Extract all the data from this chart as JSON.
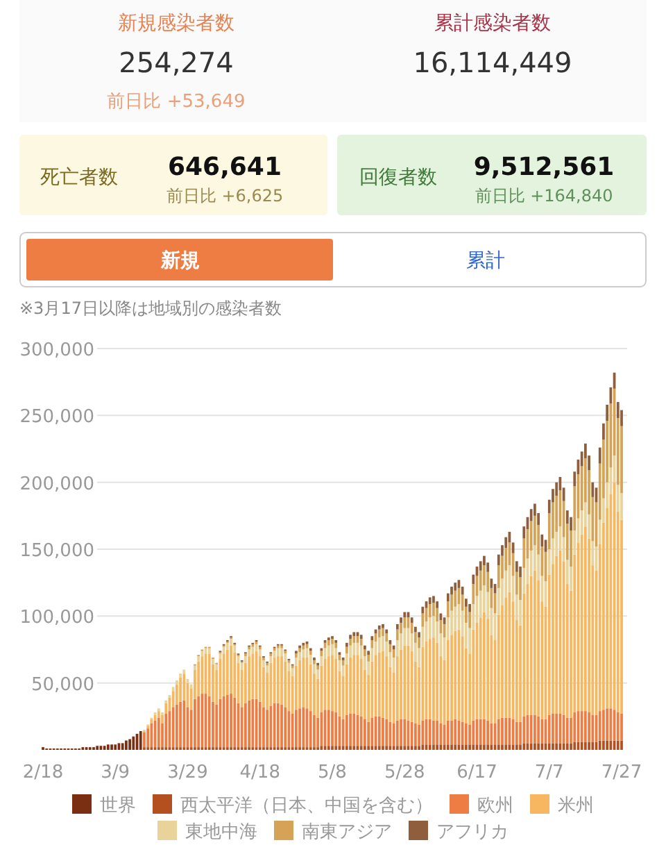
{
  "chart_data": {
    "type": "bar",
    "stacked": true,
    "grid": "y",
    "legend": "bottom",
    "annotations": [
      "新規感染者数",
      "254,274",
      "前日比 +53,649",
      "累計感染者数",
      "16,114,449",
      "死亡者数",
      "646,641",
      "前日比 +6,625",
      "回復者数",
      "9,512,561",
      "前日比 +164,840",
      "新規",
      "累計",
      "※3月17日以降は地域別の感染者数"
    ],
    "ylim": [
      0,
      300000
    ],
    "yticks": [
      {
        "value": 50000,
        "label": "50,000"
      },
      {
        "value": 100000,
        "label": "100,000"
      },
      {
        "value": 150000,
        "label": "150,000"
      },
      {
        "value": 200000,
        "label": "200,000"
      },
      {
        "value": 250000,
        "label": "250,000"
      },
      {
        "value": 300000,
        "label": "300,000"
      }
    ],
    "categories": [
      "2/18",
      null,
      null,
      null,
      null,
      null,
      null,
      null,
      null,
      null,
      null,
      null,
      null,
      null,
      null,
      null,
      null,
      null,
      null,
      null,
      "3/9",
      null,
      null,
      null,
      null,
      null,
      null,
      null,
      null,
      null,
      null,
      null,
      null,
      null,
      null,
      null,
      null,
      null,
      null,
      null,
      "3/29",
      null,
      null,
      null,
      null,
      null,
      null,
      null,
      null,
      null,
      null,
      null,
      null,
      null,
      null,
      null,
      null,
      null,
      null,
      null,
      "4/18",
      null,
      null,
      null,
      null,
      null,
      null,
      null,
      null,
      null,
      null,
      null,
      null,
      null,
      null,
      null,
      null,
      null,
      null,
      null,
      "5/8",
      null,
      null,
      null,
      null,
      null,
      null,
      null,
      null,
      null,
      null,
      null,
      null,
      null,
      null,
      null,
      null,
      null,
      null,
      null,
      "5/28",
      null,
      null,
      null,
      null,
      null,
      null,
      null,
      null,
      null,
      null,
      null,
      null,
      null,
      null,
      null,
      null,
      null,
      null,
      null,
      "6/17",
      null,
      null,
      null,
      null,
      null,
      null,
      null,
      null,
      null,
      null,
      null,
      null,
      null,
      null,
      null,
      null,
      null,
      null,
      null,
      "7/7",
      null,
      null,
      null,
      null,
      null,
      null,
      null,
      null,
      null,
      null,
      null,
      null,
      null,
      null,
      null,
      null,
      null,
      null,
      null,
      "7/27"
    ],
    "series": [
      {
        "name": "世界",
        "color": "#7a2e12",
        "values": [
          2000,
          1000,
          1000,
          1000,
          1000,
          1000,
          1000,
          1000,
          1000,
          1000,
          1000,
          2000,
          2000,
          2000,
          2000,
          3000,
          3000,
          3000,
          4000,
          4000,
          4000,
          5000,
          5000,
          7000,
          8000,
          10000,
          12000,
          14000,
          null,
          null,
          null,
          null,
          null,
          null,
          null,
          null,
          null,
          null,
          null,
          null,
          null,
          null,
          null,
          null,
          null,
          null,
          null,
          null,
          null,
          null,
          null,
          null,
          null,
          null,
          null,
          null,
          null,
          null,
          null,
          null,
          null,
          null,
          null,
          null,
          null,
          null,
          null,
          null,
          null,
          null,
          null,
          null,
          null,
          null,
          null,
          null,
          null,
          null,
          null,
          null,
          null,
          null,
          null,
          null,
          null,
          null,
          null,
          null,
          null,
          null,
          null,
          null,
          null,
          null,
          null,
          null,
          null,
          null,
          null,
          null,
          null,
          null,
          null,
          null,
          null,
          null,
          null,
          null,
          null,
          null,
          null,
          null,
          null,
          null,
          null,
          null,
          null,
          null,
          null,
          null,
          null,
          null,
          null,
          null,
          null,
          null,
          null,
          null,
          null,
          null,
          null,
          null,
          null,
          null,
          null,
          null,
          null,
          null,
          null,
          null,
          null,
          null,
          null,
          null,
          null,
          null,
          null,
          null,
          null,
          null,
          null,
          null,
          null,
          null,
          null,
          null,
          null,
          null,
          null,
          null,
          null
        ]
      },
      {
        "name": "西太平洋（日本、中国を含む）",
        "color": "#b4501f",
        "values": [
          null,
          null,
          null,
          null,
          null,
          null,
          null,
          null,
          null,
          null,
          null,
          null,
          null,
          null,
          null,
          null,
          null,
          null,
          null,
          null,
          null,
          null,
          null,
          null,
          null,
          null,
          null,
          null,
          2000,
          2000,
          2000,
          2000,
          2000,
          2000,
          2000,
          2000,
          2000,
          2000,
          2000,
          2000,
          2000,
          2000,
          2000,
          2000,
          2000,
          2000,
          2000,
          2000,
          2000,
          2000,
          2000,
          2000,
          2000,
          2000,
          2000,
          2000,
          2000,
          2000,
          2000,
          2000,
          2000,
          2000,
          2000,
          2000,
          2000,
          2000,
          2000,
          2000,
          2000,
          2000,
          2000,
          2000,
          2000,
          2000,
          2000,
          2000,
          2000,
          3000,
          3000,
          3000,
          3000,
          3000,
          3000,
          3000,
          3000,
          3000,
          3000,
          3000,
          3000,
          3000,
          3000,
          3000,
          3000,
          3000,
          3000,
          3000,
          3000,
          3000,
          3000,
          3000,
          3000,
          3000,
          3000,
          3000,
          3000,
          4000,
          4000,
          4000,
          4000,
          4000,
          4000,
          4000,
          4000,
          4000,
          4000,
          4000,
          4000,
          4000,
          4000,
          4000,
          4000,
          4000,
          4000,
          4000,
          4000,
          4000,
          4000,
          4000,
          4000,
          4000,
          4000,
          4000,
          4000,
          5000,
          5000,
          5000,
          5000,
          5000,
          5000,
          5000,
          5000,
          5000,
          5000,
          5000,
          5000,
          5000,
          5000,
          6000,
          6000,
          6000,
          6000,
          6000,
          6000,
          6000,
          7000,
          7000,
          7000,
          7000,
          7000,
          7000,
          7000
        ]
      },
      {
        "name": "欧州",
        "color": "#ee7d44",
        "values": [
          null,
          null,
          null,
          null,
          null,
          null,
          null,
          null,
          null,
          null,
          null,
          null,
          null,
          null,
          null,
          null,
          null,
          null,
          null,
          null,
          null,
          null,
          null,
          null,
          null,
          null,
          null,
          null,
          11000,
          14000,
          18000,
          20000,
          22000,
          18000,
          25000,
          27000,
          30000,
          32000,
          34000,
          35000,
          30000,
          28000,
          36000,
          38000,
          40000,
          40000,
          38000,
          34000,
          32000,
          36000,
          38000,
          39000,
          40000,
          37000,
          33000,
          30000,
          33000,
          35000,
          36000,
          36000,
          34000,
          30000,
          28000,
          31000,
          33000,
          33000,
          32000,
          30000,
          27000,
          25000,
          28000,
          29000,
          30000,
          29000,
          27000,
          24000,
          22000,
          25000,
          27000,
          27000,
          26000,
          25000,
          22000,
          20000,
          23000,
          24000,
          24000,
          23000,
          22000,
          20000,
          18000,
          21000,
          22000,
          22000,
          21000,
          20000,
          18000,
          17000,
          19000,
          20000,
          20000,
          19000,
          18000,
          17000,
          16000,
          18000,
          19000,
          19000,
          18000,
          18000,
          16000,
          15000,
          18000,
          18000,
          19000,
          18000,
          17000,
          16000,
          15000,
          18000,
          19000,
          19000,
          19000,
          18000,
          16000,
          16000,
          19000,
          20000,
          20000,
          20000,
          19000,
          17000,
          17000,
          20000,
          21000,
          21000,
          21000,
          20000,
          18000,
          18000,
          21000,
          22000,
          22000,
          22000,
          21000,
          19000,
          19000,
          22000,
          23000,
          23000,
          23000,
          22000,
          20000,
          20000,
          22000,
          23000,
          24000,
          24000,
          23000,
          21000,
          20000
        ]
      },
      {
        "name": "米州",
        "color": "#f6b760",
        "values": [
          null,
          null,
          null,
          null,
          null,
          null,
          null,
          null,
          null,
          null,
          null,
          null,
          null,
          null,
          null,
          null,
          null,
          null,
          null,
          null,
          null,
          null,
          null,
          null,
          null,
          null,
          null,
          null,
          1000,
          2000,
          3000,
          4000,
          5000,
          6000,
          8000,
          10000,
          12000,
          15000,
          18000,
          20000,
          18000,
          16000,
          22000,
          26000,
          28000,
          30000,
          32000,
          28000,
          26000,
          30000,
          32000,
          34000,
          36000,
          34000,
          30000,
          28000,
          30000,
          33000,
          34000,
          36000,
          34000,
          30000,
          28000,
          32000,
          34000,
          35000,
          36000,
          34000,
          30000,
          28000,
          33000,
          36000,
          37000,
          38000,
          35000,
          31000,
          29000,
          35000,
          38000,
          40000,
          42000,
          40000,
          34000,
          32000,
          38000,
          42000,
          44000,
          45000,
          43000,
          37000,
          35000,
          42000,
          46000,
          48000,
          50000,
          47000,
          41000,
          38000,
          48000,
          52000,
          55000,
          56000,
          53000,
          46000,
          43000,
          55000,
          58000,
          60000,
          62000,
          58000,
          50000,
          48000,
          60000,
          64000,
          66000,
          68000,
          64000,
          56000,
          53000,
          68000,
          72000,
          76000,
          80000,
          76000,
          66000,
          62000,
          78000,
          84000,
          90000,
          94000,
          88000,
          76000,
          72000,
          92000,
          98000,
          104000,
          108000,
          102000,
          88000,
          84000,
          105000,
          112000,
          118000,
          122000,
          115000,
          100000,
          95000,
          118000,
          126000,
          132000,
          138000,
          130000,
          112000,
          108000,
          125000,
          140000,
          150000,
          160000,
          170000,
          150000,
          145000
        ]
      },
      {
        "name": "東地中海",
        "color": "#ead39a",
        "values": [
          null,
          null,
          null,
          null,
          null,
          null,
          null,
          null,
          null,
          null,
          null,
          null,
          null,
          null,
          null,
          null,
          null,
          null,
          null,
          null,
          null,
          null,
          null,
          null,
          null,
          null,
          null,
          null,
          1000,
          1000,
          1000,
          2000,
          2000,
          2000,
          2000,
          2000,
          3000,
          3000,
          3000,
          3000,
          3000,
          3000,
          3000,
          4000,
          4000,
          4000,
          4000,
          4000,
          4000,
          4000,
          5000,
          5000,
          5000,
          5000,
          5000,
          5000,
          5000,
          5000,
          5000,
          5000,
          5000,
          5000,
          5000,
          5000,
          5000,
          6000,
          6000,
          6000,
          6000,
          6000,
          6000,
          6000,
          6000,
          7000,
          7000,
          7000,
          7000,
          7000,
          8000,
          8000,
          8000,
          8000,
          8000,
          8000,
          8000,
          9000,
          9000,
          9000,
          10000,
          10000,
          10000,
          10000,
          10000,
          11000,
          11000,
          11000,
          11000,
          11000,
          12000,
          12000,
          13000,
          13000,
          13000,
          14000,
          14000,
          15000,
          15000,
          16000,
          16000,
          16000,
          17000,
          17000,
          17000,
          18000,
          18000,
          19000,
          19000,
          19000,
          19000,
          19000,
          20000,
          20000,
          20000,
          20000,
          20000,
          20000,
          20000,
          20000,
          20000,
          20000,
          19000,
          19000,
          19000,
          19000,
          19000,
          19000,
          19000,
          19000,
          19000,
          19000,
          19000,
          19000,
          18000,
          18000,
          18000,
          18000,
          18000,
          18000,
          18000,
          18000,
          18000,
          18000,
          18000,
          18000,
          18000,
          18000,
          19000,
          20000,
          20000,
          20000,
          20000
        ]
      },
      {
        "name": "南東アジア",
        "color": "#d4a355",
        "values": [
          null,
          null,
          null,
          null,
          null,
          null,
          null,
          null,
          null,
          null,
          null,
          null,
          null,
          null,
          null,
          null,
          null,
          null,
          null,
          null,
          null,
          null,
          null,
          null,
          null,
          null,
          null,
          null,
          null,
          null,
          null,
          null,
          null,
          null,
          null,
          null,
          null,
          null,
          null,
          null,
          null,
          null,
          1000,
          1000,
          1000,
          1000,
          1000,
          1000,
          1000,
          1000,
          1000,
          1000,
          1000,
          1000,
          1000,
          1000,
          2000,
          2000,
          2000,
          2000,
          2000,
          2000,
          2000,
          2000,
          2000,
          2000,
          2000,
          2000,
          2000,
          2000,
          3000,
          3000,
          3000,
          3000,
          3000,
          3000,
          3000,
          4000,
          4000,
          4000,
          4000,
          4000,
          4000,
          4000,
          5000,
          5000,
          5000,
          5000,
          5000,
          5000,
          5000,
          6000,
          6000,
          6000,
          6000,
          6000,
          6000,
          6000,
          8000,
          8000,
          8000,
          8000,
          8000,
          8000,
          8000,
          10000,
          10000,
          10000,
          10000,
          10000,
          10000,
          10000,
          12000,
          12000,
          12000,
          12000,
          12000,
          12000,
          12000,
          15000,
          15000,
          15000,
          15000,
          15000,
          15000,
          15000,
          17000,
          17000,
          17000,
          17000,
          17000,
          17000,
          17000,
          22000,
          22000,
          22000,
          22000,
          22000,
          22000,
          22000,
          27000,
          27000,
          27000,
          27000,
          27000,
          27000,
          27000,
          33000,
          33000,
          33000,
          33000,
          33000,
          33000,
          33000,
          42000,
          44000,
          46000,
          48000,
          50000,
          50000,
          50000
        ]
      },
      {
        "name": "アフリカ",
        "color": "#8f5e3c",
        "values": [
          null,
          null,
          null,
          null,
          null,
          null,
          null,
          null,
          null,
          null,
          null,
          null,
          null,
          null,
          null,
          null,
          null,
          null,
          null,
          null,
          null,
          null,
          null,
          null,
          null,
          null,
          null,
          null,
          null,
          null,
          null,
          null,
          null,
          null,
          null,
          null,
          null,
          null,
          null,
          null,
          null,
          null,
          null,
          null,
          null,
          null,
          null,
          null,
          null,
          1000,
          1000,
          1000,
          1000,
          1000,
          1000,
          1000,
          1000,
          1000,
          1000,
          1000,
          1000,
          1000,
          1000,
          1000,
          1000,
          1000,
          1000,
          1000,
          1000,
          1000,
          2000,
          2000,
          2000,
          2000,
          2000,
          2000,
          2000,
          2000,
          2000,
          2000,
          2000,
          2000,
          2000,
          2000,
          3000,
          3000,
          3000,
          3000,
          3000,
          3000,
          3000,
          3000,
          3000,
          3000,
          3000,
          3000,
          3000,
          3000,
          4000,
          4000,
          4000,
          4000,
          4000,
          4000,
          4000,
          5000,
          5000,
          5000,
          5000,
          5000,
          5000,
          5000,
          6000,
          6000,
          6000,
          6000,
          6000,
          6000,
          6000,
          7000,
          7000,
          7000,
          7000,
          7000,
          7000,
          7000,
          8000,
          8000,
          8000,
          8000,
          8000,
          8000,
          8000,
          9000,
          9000,
          9000,
          9000,
          9000,
          9000,
          9000,
          10000,
          10000,
          10000,
          10000,
          10000,
          10000,
          10000,
          11000,
          11000,
          11000,
          11000,
          11000,
          11000,
          11000,
          12000,
          12000,
          12000,
          12000,
          12000,
          12000,
          12000
        ]
      }
    ]
  }
}
